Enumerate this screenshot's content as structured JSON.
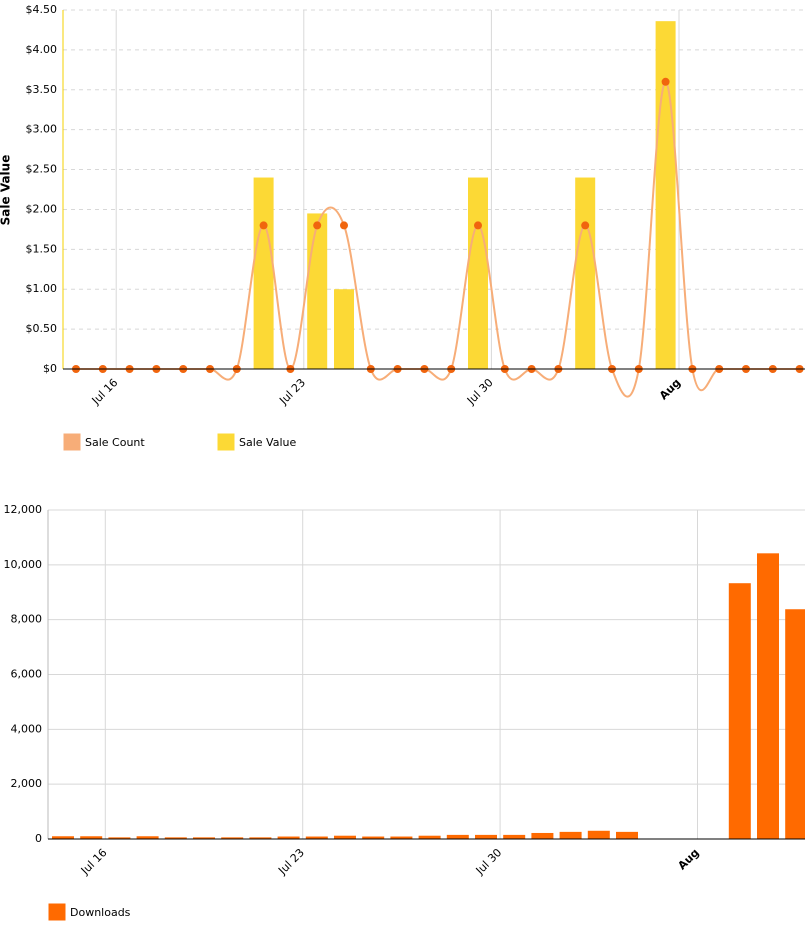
{
  "chart_data": [
    {
      "type": "bar",
      "y_label": "Sale Value",
      "categories": [
        null,
        null,
        "Jul 16",
        null,
        null,
        null,
        null,
        null,
        null,
        "Jul 23",
        null,
        null,
        null,
        null,
        null,
        null,
        "Jul 30",
        null,
        null,
        null,
        null,
        null,
        null,
        "Aug",
        null,
        null,
        null,
        null
      ],
      "series": [
        {
          "name": "Sale Count",
          "type": "line",
          "axis": "y2",
          "color": "#f7ad78",
          "values": [
            0,
            0,
            0,
            0,
            0,
            0,
            0,
            1,
            0,
            1,
            1,
            0,
            0,
            0,
            0,
            1,
            0,
            0,
            0,
            1,
            0,
            0,
            2,
            0,
            0,
            0,
            0,
            0
          ]
        },
        {
          "name": "Sale Value",
          "type": "bar",
          "color": "#fcd935",
          "values": [
            0,
            0,
            0,
            0,
            0,
            0,
            0,
            2.4,
            0,
            1.95,
            1.0,
            0,
            0,
            0,
            0,
            2.4,
            0,
            0,
            0,
            2.4,
            0,
            0,
            4.36,
            0,
            0,
            0,
            0,
            0
          ]
        }
      ],
      "ylim": [
        0,
        4.5
      ],
      "yticks": [
        {
          "value": 0,
          "label": "$0"
        },
        {
          "value": 0.5,
          "label": "$0.50"
        },
        {
          "value": 1,
          "label": "$1.00"
        },
        {
          "value": 1.5,
          "label": "$1.50"
        },
        {
          "value": 2,
          "label": "$2.00"
        },
        {
          "value": 2.5,
          "label": "$2.50"
        },
        {
          "value": 3,
          "label": "$3.00"
        },
        {
          "value": 3.5,
          "label": "$3.50"
        },
        {
          "value": 4,
          "label": "$4.00"
        },
        {
          "value": 4.5,
          "label": "$4.50"
        }
      ],
      "y2lim": [
        0,
        2.5
      ],
      "grid": true
    },
    {
      "type": "bar",
      "categories": [
        null,
        null,
        "Jul 16",
        null,
        null,
        null,
        null,
        null,
        null,
        "Jul 23",
        null,
        null,
        null,
        null,
        null,
        null,
        "Jul 30",
        null,
        null,
        null,
        null,
        null,
        null,
        "Aug",
        null,
        null,
        null
      ],
      "series": [
        {
          "name": "Downloads",
          "type": "bar",
          "color": "#ff6a00",
          "values": [
            100,
            100,
            60,
            100,
            60,
            60,
            60,
            60,
            90,
            90,
            120,
            90,
            90,
            120,
            150,
            150,
            150,
            220,
            260,
            300,
            260,
            0,
            0,
            0,
            9330,
            10420,
            8380
          ]
        }
      ],
      "ylim": [
        0,
        12000
      ],
      "yticks": [
        0,
        {
          "value": 2000,
          "label": "2,000"
        },
        {
          "value": 4000,
          "label": "4,000"
        },
        {
          "value": 6000,
          "label": "6,000"
        },
        {
          "value": 8000,
          "label": "8,000"
        },
        {
          "value": 10000,
          "label": "10,000"
        },
        {
          "value": 12000,
          "label": "12,000"
        }
      ],
      "grid": true
    }
  ]
}
